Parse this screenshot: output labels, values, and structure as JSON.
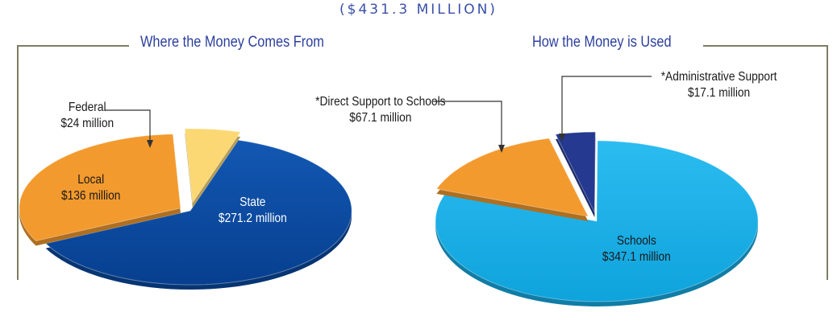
{
  "total": "($431.3 MILLION)",
  "colors": {
    "state": "#0a4aa0",
    "local": "#f39a2e",
    "federal": "#fbd873",
    "schools": "#16aee6",
    "direct_support": "#f39a2e",
    "admin_support": "#24398f",
    "frame": "#7d7d62",
    "title": "#2b3f9e"
  },
  "chart_data": [
    {
      "type": "pie",
      "title": "Where the Money Comes From",
      "slices": [
        {
          "key": "state",
          "label": "State",
          "value_label": "$271.2 million",
          "value": 271.2
        },
        {
          "key": "local",
          "label": "Local",
          "value_label": "$136 million",
          "value": 136
        },
        {
          "key": "federal",
          "label": "Federal",
          "value_label": "$24 million",
          "value": 24
        }
      ]
    },
    {
      "type": "pie",
      "title": "How the Money is Used",
      "slices": [
        {
          "key": "schools",
          "label": "Schools",
          "value_label": "$347.1 million",
          "value": 347.1
        },
        {
          "key": "direct_support",
          "label": "*Direct Support to Schools",
          "value_label": "$67.1 million",
          "value": 67.1
        },
        {
          "key": "admin_support",
          "label": "*Administrative Support",
          "value_label": "$17.1 million",
          "value": 17.1
        }
      ]
    }
  ]
}
